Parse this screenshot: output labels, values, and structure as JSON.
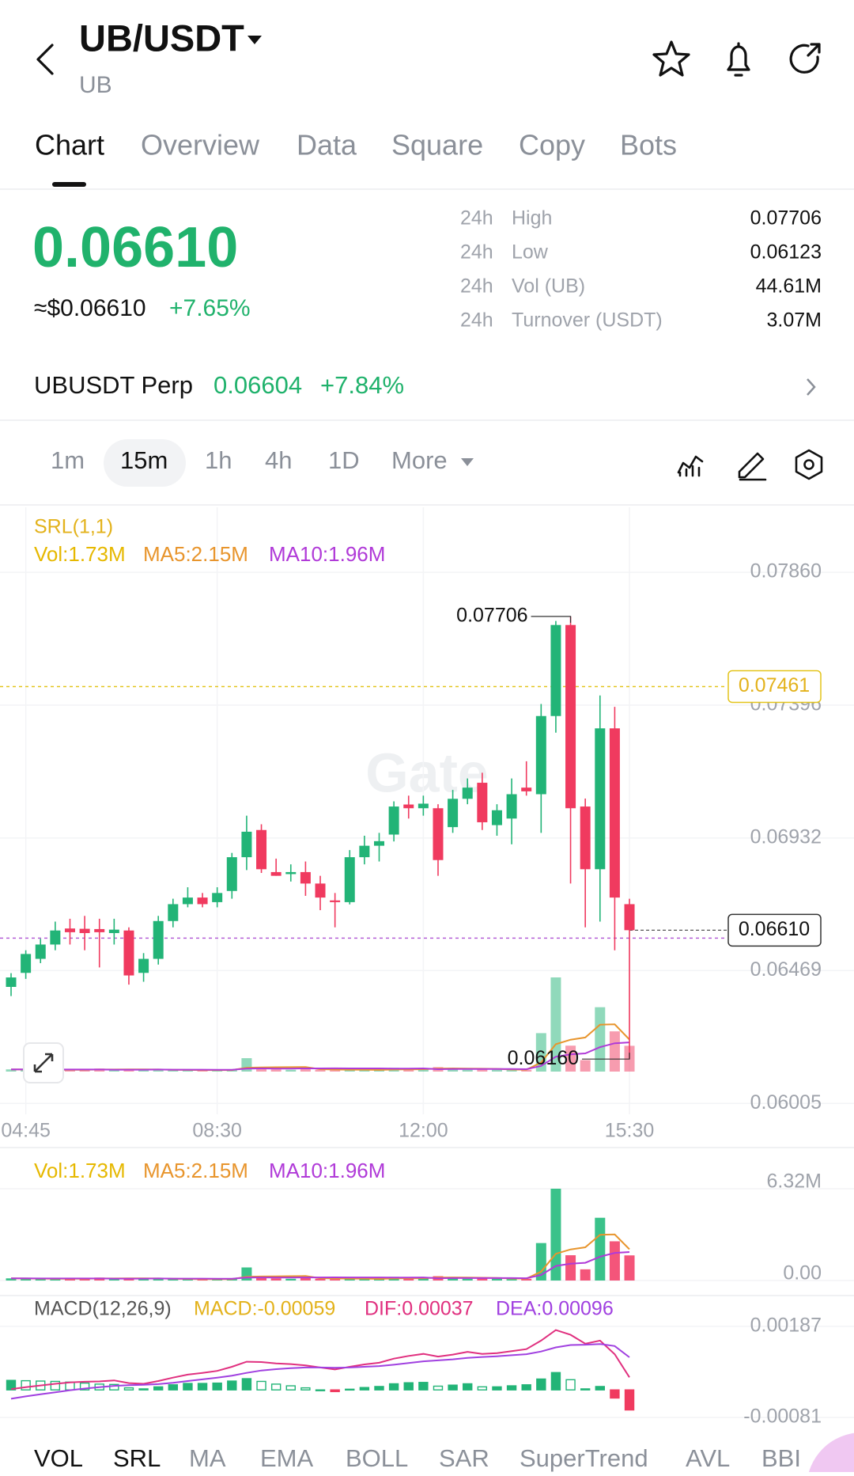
{
  "header": {
    "title": "UB/USDT",
    "subtitle": "UB"
  },
  "tabs": [
    "Chart",
    "Overview",
    "Data",
    "Square",
    "Copy",
    "Bots"
  ],
  "ticker": {
    "price": "0.06610",
    "usd": "≈$0.06610",
    "change": "+7.65%",
    "stats": [
      {
        "period": "24h",
        "label": "High",
        "value": "0.07706"
      },
      {
        "period": "24h",
        "label": "Low",
        "value": "0.06123"
      },
      {
        "period": "24h",
        "label": "Vol (UB)",
        "value": "44.61M"
      },
      {
        "period": "24h",
        "label": "Turnover (USDT)",
        "value": "3.07M"
      }
    ]
  },
  "perp": {
    "name": "UBUSDT Perp",
    "price": "0.06604",
    "change": "+7.84%"
  },
  "intervals": [
    "1m",
    "15m",
    "1h",
    "4h",
    "1D",
    "More"
  ],
  "watermark": "Gate",
  "indicator_tabs": [
    "VOL",
    "SRL",
    "MA",
    "EMA",
    "BOLL",
    "SAR",
    "SuperTrend",
    "AVL",
    "BBI"
  ],
  "chart_data": [
    {
      "type": "candlestick",
      "indicator": "SRL(1,1)",
      "categories": [
        null,
        "04:45",
        null,
        null,
        null,
        null,
        null,
        null,
        null,
        null,
        null,
        null,
        null,
        null,
        "08:30",
        null,
        null,
        null,
        null,
        null,
        null,
        null,
        null,
        null,
        null,
        null,
        null,
        null,
        "12:00",
        null,
        null,
        null,
        null,
        null,
        null,
        null,
        null,
        null,
        null,
        null,
        null,
        null,
        "15:30"
      ],
      "candles": [
        [
          0.06412,
          0.0646,
          0.0638,
          0.06445
        ],
        [
          0.06461,
          0.0654,
          0.0644,
          0.06527
        ],
        [
          0.0651,
          0.0658,
          0.06495,
          0.0656
        ],
        [
          0.0656,
          0.0664,
          0.0654,
          0.06609
        ],
        [
          0.06616,
          0.0665,
          0.0656,
          0.06603
        ],
        [
          0.06615,
          0.0666,
          0.0654,
          0.066
        ],
        [
          0.06614,
          0.0665,
          0.0648,
          0.06603
        ],
        [
          0.066,
          0.0665,
          0.0656,
          0.06612
        ],
        [
          0.06609,
          0.0662,
          0.0642,
          0.06452
        ],
        [
          0.06461,
          0.0653,
          0.0643,
          0.0651
        ],
        [
          0.0651,
          0.0666,
          0.0649,
          0.06642
        ],
        [
          0.06642,
          0.0672,
          0.0662,
          0.06701
        ],
        [
          0.06701,
          0.0676,
          0.0669,
          0.06724
        ],
        [
          0.06724,
          0.0674,
          0.0669,
          0.06701
        ],
        [
          0.06708,
          0.0676,
          0.0669,
          0.0674
        ],
        [
          0.06747,
          0.0688,
          0.0672,
          0.06865
        ],
        [
          0.06865,
          0.0701,
          0.0682,
          0.06954
        ],
        [
          0.0696,
          0.0698,
          0.0681,
          0.06823
        ],
        [
          0.06813,
          0.0686,
          0.068,
          0.068
        ],
        [
          0.06806,
          0.0684,
          0.0678,
          0.06813
        ],
        [
          0.06813,
          0.0685,
          0.0673,
          0.06773
        ],
        [
          0.06773,
          0.068,
          0.0668,
          0.06724
        ],
        [
          0.06714,
          0.0674,
          0.0662,
          0.06708
        ],
        [
          0.06708,
          0.0689,
          0.067,
          0.06865
        ],
        [
          0.06865,
          0.0694,
          0.0684,
          0.06905
        ],
        [
          0.06905,
          0.0695,
          0.0685,
          0.06921
        ],
        [
          0.06944,
          0.0706,
          0.0692,
          0.07042
        ],
        [
          0.07049,
          0.0708,
          0.07,
          0.07036
        ],
        [
          0.07036,
          0.0708,
          0.0701,
          0.07052
        ],
        [
          0.07036,
          0.0705,
          0.068,
          0.06855
        ],
        [
          0.0697,
          0.071,
          0.0695,
          0.07069
        ],
        [
          0.07069,
          0.0714,
          0.0705,
          0.07108
        ],
        [
          0.07125,
          0.0716,
          0.0696,
          0.06987
        ],
        [
          0.06977,
          0.0705,
          0.0694,
          0.07029
        ],
        [
          0.07,
          0.0714,
          0.0691,
          0.07085
        ],
        [
          0.07108,
          0.072,
          0.0708,
          0.07095
        ],
        [
          0.07085,
          0.074,
          0.0695,
          0.07358
        ],
        [
          0.07358,
          0.0769,
          0.073,
          0.07676
        ],
        [
          0.07676,
          0.07706,
          0.06773,
          0.07036
        ],
        [
          0.07042,
          0.0707,
          0.0662,
          0.06823
        ],
        [
          0.06823,
          0.0743,
          0.0664,
          0.07315
        ],
        [
          0.07315,
          0.0739,
          0.0654,
          0.06724
        ],
        [
          0.06701,
          0.0672,
          0.0616,
          0.0661
        ]
      ],
      "up_color": "#22b477",
      "down_color": "#f03a5f",
      "ylim": [
        0.05967,
        0.08087
      ],
      "yticks": [
        {
          "value": 0.0786,
          "label": "0.07860"
        },
        {
          "value": 0.07396,
          "label": "0.07396"
        },
        {
          "value": 0.06932,
          "label": "0.06932"
        },
        {
          "value": 0.06469,
          "label": "0.06469"
        },
        {
          "value": 0.06005,
          "label": "0.06005"
        }
      ],
      "grid": true,
      "srl_line": {
        "value": 0.07461,
        "label": "0.07461",
        "color": "#e3c41a"
      },
      "last_price": {
        "value": 0.0661,
        "label": "0.06610",
        "color": "#b45fd6"
      },
      "high_label": "0.07706",
      "low_label": "0.06160"
    },
    {
      "type": "bar",
      "series": [
        {
          "name": "Vol:1.73M",
          "color": "#e6b800",
          "values": [
            0.15,
            0.12,
            0.1,
            0.1,
            0.12,
            0.18,
            0.2,
            0.12,
            0.15,
            0.1,
            0.12,
            0.1,
            0.08,
            0.1,
            0.1,
            0.12,
            0.9,
            0.2,
            0.15,
            0.12,
            0.2,
            0.12,
            0.1,
            0.12,
            0.1,
            0.12,
            0.25,
            0.15,
            0.2,
            0.3,
            0.15,
            0.12,
            0.2,
            0.12,
            0.1,
            0.12,
            2.58,
            6.32,
            1.74,
            0.77,
            4.32,
            2.7,
            1.73
          ]
        },
        {
          "name": "MA5:2.15M",
          "color": "#e8952d",
          "values": [
            0.15,
            0.14,
            0.13,
            0.12,
            0.12,
            0.12,
            0.14,
            0.14,
            0.15,
            0.15,
            0.14,
            0.12,
            0.11,
            0.1,
            0.1,
            0.1,
            0.26,
            0.28,
            0.29,
            0.3,
            0.31,
            0.16,
            0.14,
            0.13,
            0.13,
            0.11,
            0.14,
            0.15,
            0.16,
            0.2,
            0.21,
            0.2,
            0.19,
            0.18,
            0.14,
            0.13,
            0.61,
            1.84,
            2.14,
            2.29,
            3.15,
            3.17,
            2.15
          ]
        },
        {
          "name": "MA10:1.96M",
          "color": "#b03ad8",
          "values": [
            0.15,
            0.15,
            0.14,
            0.14,
            0.14,
            0.14,
            0.14,
            0.13,
            0.13,
            0.13,
            0.14,
            0.13,
            0.13,
            0.13,
            0.12,
            0.12,
            0.2,
            0.21,
            0.2,
            0.2,
            0.21,
            0.21,
            0.22,
            0.21,
            0.21,
            0.21,
            0.2,
            0.2,
            0.21,
            0.16,
            0.17,
            0.17,
            0.17,
            0.17,
            0.17,
            0.16,
            0.38,
            1.0,
            1.16,
            1.22,
            1.64,
            1.9,
            1.96
          ]
        }
      ],
      "ylim": [
        0,
        6.32
      ],
      "yticks": [
        {
          "value": 6.32,
          "label": "6.32M"
        },
        {
          "value": 0,
          "label": "0.00"
        }
      ]
    },
    {
      "type": "macd",
      "title": "MACD(12,26,9)",
      "up_color": "#22b477",
      "down_color": "#f03a5f",
      "series": [
        {
          "name": "MACD:-0.00059",
          "color": "#e3b21b",
          "values": [
            0.00028,
            0.00027,
            0.00026,
            0.00025,
            0.00023,
            0.0002,
            0.00017,
            0.00016,
            6e-05,
            3e-05,
            9e-05,
            0.00015,
            0.00019,
            0.00019,
            0.0002,
            0.00026,
            0.00033,
            0.00025,
            0.00017,
            0.00012,
            6e-05,
            0,
            -5e-05,
            2e-05,
            7e-05,
            0.0001,
            0.00018,
            0.00021,
            0.00022,
            0.00011,
            0.00014,
            0.00018,
            9e-05,
            9e-05,
            0.00012,
            0.00015,
            0.00032,
            0.00051,
            0.0003,
            3e-05,
            0.0001,
            -0.00024,
            -0.00059
          ]
        },
        {
          "name": "DIF:0.00037",
          "color": "#e0307f",
          "values": [
            2e-05,
            8e-05,
            0.00013,
            0.00018,
            0.00022,
            0.00024,
            0.00025,
            0.00028,
            0.0002,
            0.00018,
            0.00026,
            0.00036,
            0.00045,
            0.0005,
            0.00056,
            0.00068,
            0.00083,
            0.00082,
            0.00078,
            0.00076,
            0.00072,
            0.00066,
            0.0006,
            0.00068,
            0.00075,
            0.0008,
            0.00092,
            0.001,
            0.00106,
            0.00098,
            0.00104,
            0.00112,
            0.00106,
            0.00108,
            0.00114,
            0.0012,
            0.00145,
            0.00176,
            0.00162,
            0.00136,
            0.00145,
            0.00105,
            0.00037
          ]
        },
        {
          "name": "DEA:0.00096",
          "color": "#a040e0",
          "values": [
            -0.00026,
            -0.00019,
            -0.00013,
            -7e-05,
            -1e-05,
            4e-05,
            8e-05,
            0.00012,
            0.00014,
            0.00015,
            0.00017,
            0.00021,
            0.00026,
            0.00031,
            0.00036,
            0.00042,
            0.0005,
            0.00057,
            0.00061,
            0.00064,
            0.00066,
            0.00066,
            0.00065,
            0.00066,
            0.00068,
            0.0007,
            0.00074,
            0.00079,
            0.00084,
            0.00087,
            0.0009,
            0.00094,
            0.00097,
            0.00099,
            0.00102,
            0.00105,
            0.00113,
            0.00125,
            0.00132,
            0.00133,
            0.00135,
            0.00129,
            0.00096
          ]
        }
      ],
      "ylim": [
        -0.00102,
        0.00259
      ],
      "yticks": [
        {
          "value": 0.00187,
          "label": "0.00187"
        },
        {
          "value": -0.00081,
          "label": "-0.00081"
        }
      ]
    }
  ]
}
